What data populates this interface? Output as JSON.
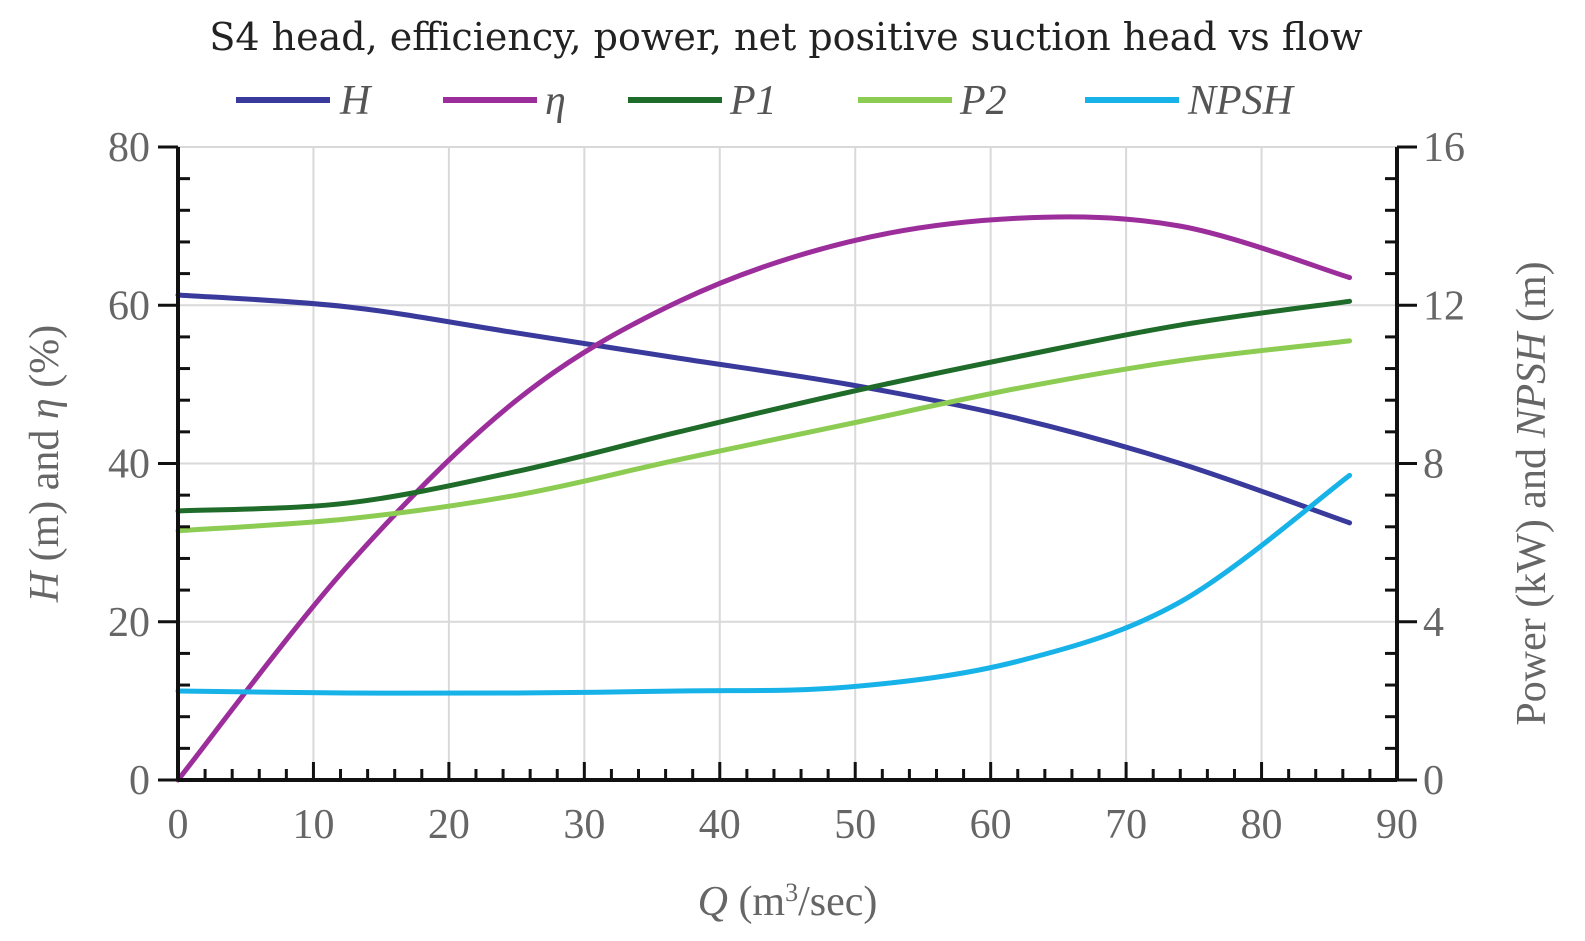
{
  "chart_data": {
    "type": "line",
    "title": "S4 head, efficiency, power, net positive suction head vs flow",
    "xlabel": {
      "italic": "Q",
      "pre": " (m",
      "sup": "3",
      "post": "/sec)"
    },
    "ylabel_left": {
      "parts": [
        [
          "H",
          true
        ],
        [
          " (m) and ",
          false
        ],
        [
          "η",
          true
        ],
        [
          " (%)",
          false
        ]
      ]
    },
    "ylabel_right": {
      "parts": [
        [
          "Power (kW) and ",
          false
        ],
        [
          "NPSH",
          true
        ],
        [
          " (m)",
          false
        ]
      ]
    },
    "xlim": [
      0,
      90
    ],
    "ylim_left": [
      0,
      80
    ],
    "ylim_right": [
      0,
      16
    ],
    "x_ticks": [
      0,
      10,
      20,
      30,
      40,
      50,
      60,
      70,
      80,
      90
    ],
    "y_left_ticks": [
      0,
      20,
      40,
      60,
      80
    ],
    "y_right_ticks": [
      0,
      4,
      8,
      12,
      16
    ],
    "grid": true,
    "legend_position": "top",
    "series": [
      {
        "name": "H",
        "axis": "left",
        "color": "#3a3a9c",
        "x": [
          0,
          12.5,
          25,
          37,
          49.5,
          62,
          74,
          86.5
        ],
        "y": [
          61.3,
          59.8,
          56.5,
          53.3,
          50.0,
          45.7,
          40.0,
          32.5
        ]
      },
      {
        "name": "η",
        "axis": "left",
        "color": "#9c2e9c",
        "x": [
          0,
          12.5,
          25,
          37,
          49.5,
          62,
          74,
          86.5
        ],
        "y": [
          0,
          27.0,
          48.0,
          60.5,
          68.0,
          71.0,
          70.0,
          63.5
        ]
      },
      {
        "name": "P1",
        "axis": "right",
        "color": "#1f6b2a",
        "x": [
          0,
          12.5,
          25,
          37,
          49.5,
          62,
          74,
          86.5
        ],
        "y": [
          6.8,
          7.0,
          7.8,
          8.8,
          9.8,
          10.7,
          11.5,
          12.1
        ]
      },
      {
        "name": "P2",
        "axis": "right",
        "color": "#8ccc52",
        "x": [
          0,
          12.5,
          25,
          37,
          49.5,
          62,
          74,
          86.5
        ],
        "y": [
          6.3,
          6.6,
          7.2,
          8.1,
          9.0,
          9.9,
          10.6,
          11.1
        ]
      },
      {
        "name": "NPSH",
        "axis": "right",
        "color": "#16b2e8",
        "x": [
          0,
          12.5,
          25,
          37,
          49.5,
          62,
          74,
          86.5
        ],
        "y": [
          2.25,
          2.2,
          2.2,
          2.25,
          2.35,
          3.0,
          4.5,
          7.7
        ]
      }
    ]
  }
}
